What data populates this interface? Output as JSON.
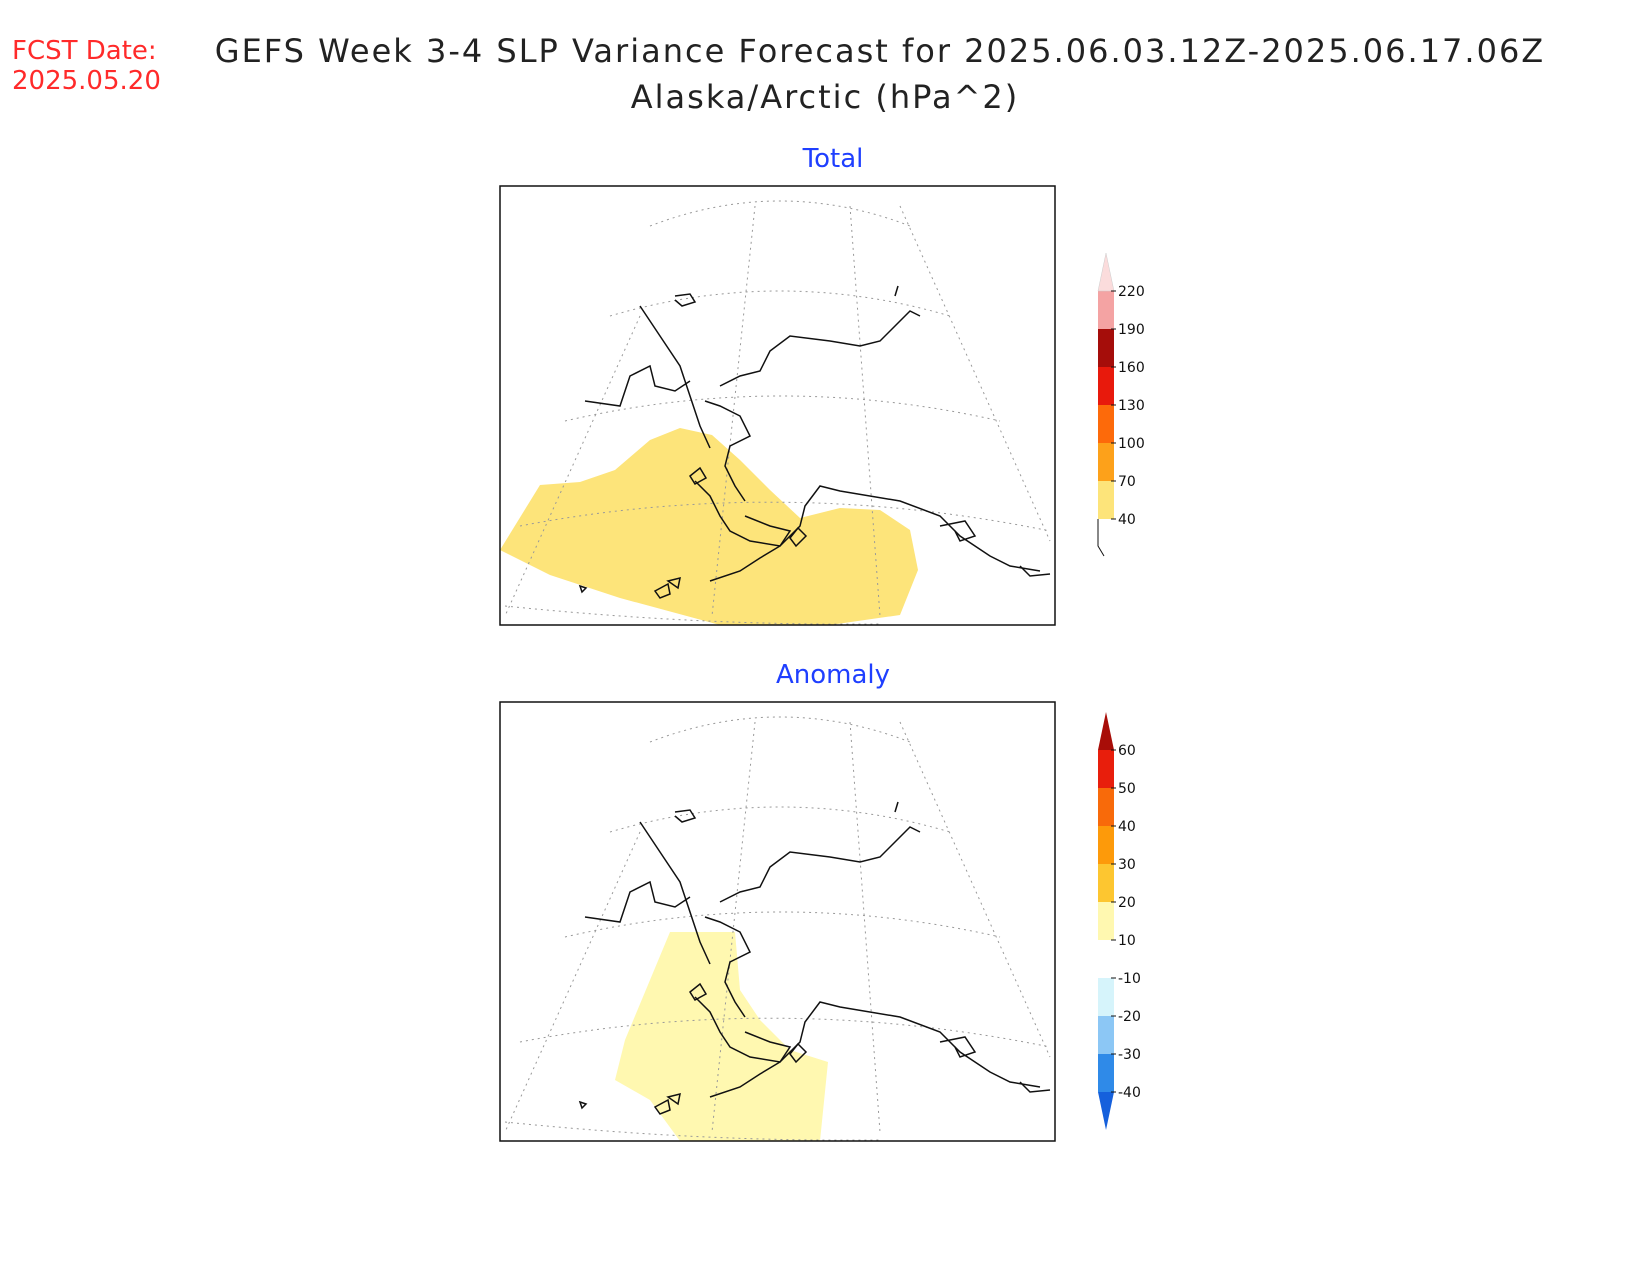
{
  "header": {
    "fcst_label": "FCST Date:",
    "fcst_date": "2025.05.20",
    "title_line1": "GEFS Week 3-4 SLP Variance Forecast for 2025.06.03.12Z-2025.06.17.06Z",
    "title_line2": "Alaska/Arctic (hPa^2)"
  },
  "panels": [
    {
      "title": "Total",
      "colorbar": {
        "levels": [
          "40",
          "70",
          "100",
          "130",
          "160",
          "190",
          "220"
        ],
        "colors": [
          "#fde47a",
          "#fda11a",
          "#fd6a0a",
          "#e8190c",
          "#a50d0a",
          "#f4a3a3",
          "#fbdcdc"
        ]
      }
    },
    {
      "title": "Anomaly",
      "colorbar": {
        "levels": [
          "-40",
          "-30",
          "-20",
          "-10",
          "10",
          "20",
          "30",
          "40",
          "50",
          "60"
        ],
        "colors": [
          "#1560dc",
          "#2f8ae8",
          "#8cc7f5",
          "#d6f4fb",
          "#ffffff",
          "#fff8b0",
          "#fdc630",
          "#fd9a0a",
          "#f86a0a",
          "#e81e0c",
          "#a80d08"
        ]
      }
    }
  ]
}
